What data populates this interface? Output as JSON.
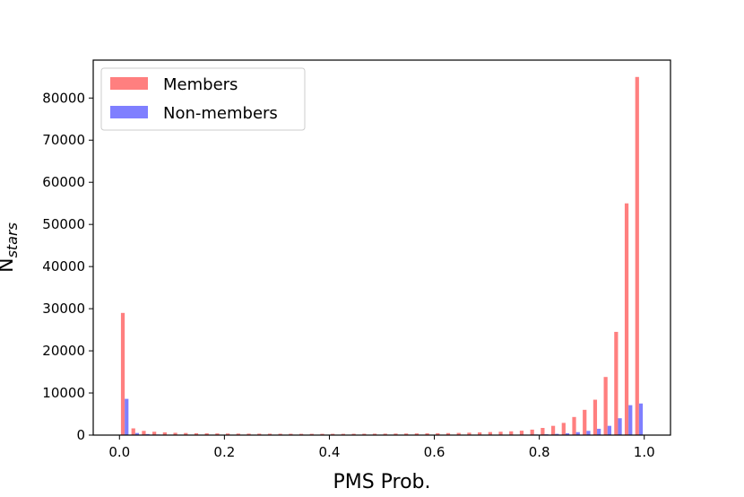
{
  "chart_data": {
    "type": "bar",
    "xlabel": "PMS Prob.",
    "ylabel": {
      "base": "N",
      "subscript": "stars"
    },
    "xlim": [
      -0.05,
      1.05
    ],
    "ylim": [
      0,
      89000
    ],
    "xticks": [
      0.0,
      0.2,
      0.4,
      0.6,
      0.8,
      1.0
    ],
    "xtick_labels": [
      "0.0",
      "0.2",
      "0.4",
      "0.6",
      "0.8",
      "1.0"
    ],
    "yticks": [
      0,
      10000,
      20000,
      30000,
      40000,
      50000,
      60000,
      70000,
      80000
    ],
    "ytick_labels": [
      "0",
      "10000",
      "20000",
      "30000",
      "40000",
      "50000",
      "60000",
      "70000",
      "80000"
    ],
    "bin_width": 0.02,
    "x": [
      0.01,
      0.03,
      0.05,
      0.07,
      0.09,
      0.11,
      0.13,
      0.15,
      0.17,
      0.19,
      0.21,
      0.23,
      0.25,
      0.27,
      0.29,
      0.31,
      0.33,
      0.35,
      0.37,
      0.39,
      0.41,
      0.43,
      0.45,
      0.47,
      0.49,
      0.51,
      0.53,
      0.55,
      0.57,
      0.59,
      0.61,
      0.63,
      0.65,
      0.67,
      0.69,
      0.71,
      0.73,
      0.75,
      0.77,
      0.79,
      0.81,
      0.83,
      0.85,
      0.87,
      0.89,
      0.91,
      0.93,
      0.95,
      0.97,
      0.99
    ],
    "series": [
      {
        "name": "Members",
        "color": "#ff7f7f",
        "values": [
          29000,
          1600,
          1000,
          800,
          650,
          550,
          500,
          450,
          420,
          400,
          380,
          360,
          350,
          340,
          330,
          320,
          310,
          300,
          300,
          300,
          300,
          300,
          310,
          320,
          330,
          340,
          360,
          380,
          400,
          420,
          450,
          480,
          520,
          580,
          650,
          720,
          800,
          900,
          1050,
          1300,
          1700,
          2200,
          2900,
          4300,
          6000,
          8400,
          13800,
          24500,
          55000,
          85000
        ]
      },
      {
        "name": "Non-members",
        "color": "#7f7fff",
        "values": [
          8600,
          500,
          250,
          150,
          100,
          80,
          60,
          50,
          50,
          40,
          40,
          40,
          40,
          40,
          40,
          40,
          40,
          40,
          40,
          40,
          40,
          40,
          40,
          40,
          40,
          40,
          40,
          40,
          40,
          40,
          40,
          50,
          50,
          60,
          60,
          70,
          80,
          100,
          120,
          150,
          200,
          300,
          450,
          700,
          1000,
          1500,
          2200,
          4000,
          7100,
          7500
        ]
      }
    ],
    "legend_position": "top-left"
  }
}
